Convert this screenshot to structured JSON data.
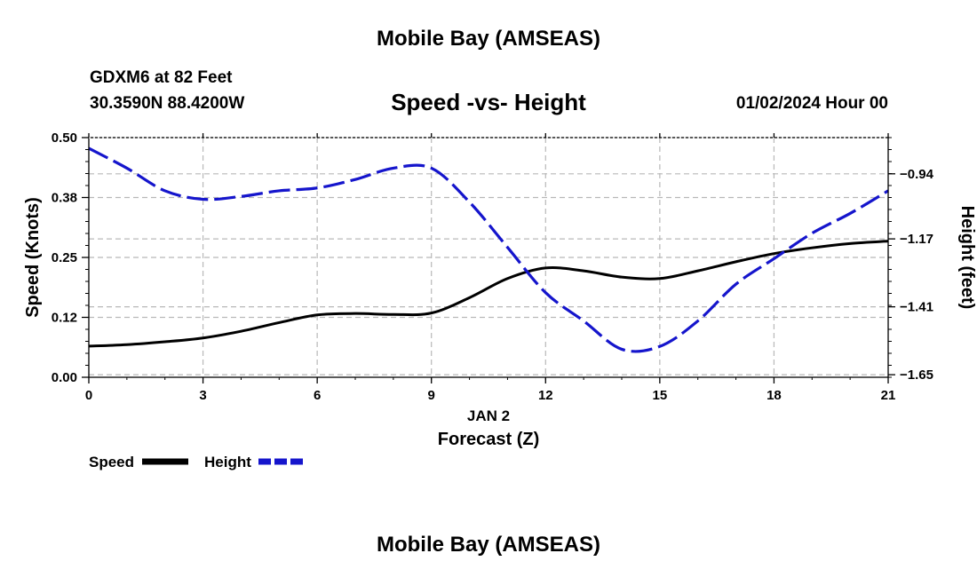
{
  "header": {
    "title": "Mobile Bay (AMSEAS)",
    "station": "GDXM6 at 82 Feet",
    "coordinates": "30.3590N  88.4200W",
    "chart_title": "Speed -vs- Height",
    "datetime": "01/02/2024 Hour 00"
  },
  "footer": {
    "title": "Mobile Bay (AMSEAS)"
  },
  "colors": {
    "speed": "#000000",
    "height": "#1515cc",
    "grid": "#b8b8b8"
  },
  "chart_data": {
    "type": "line",
    "title": "Speed -vs- Height",
    "xlabel": "Forecast (Z)",
    "xlabel_date": "JAN 2",
    "xlim": [
      0,
      21
    ],
    "x_ticks": [
      0,
      3,
      6,
      9,
      12,
      15,
      18,
      21
    ],
    "left_axis": {
      "label": "Speed (Knots)",
      "lim": [
        0.0,
        0.5
      ],
      "ticks": [
        0.0,
        0.125,
        0.25,
        0.375,
        0.5
      ],
      "tick_labels": [
        "0.00",
        "0.12",
        "0.25",
        "0.38",
        "0.50"
      ]
    },
    "right_axis": {
      "label": "Height (feet)",
      "lim": [
        -1.659,
        -0.812
      ],
      "ticks": [
        -1.65,
        -1.41,
        -1.17,
        -0.94
      ],
      "tick_labels": [
        "−1.65",
        "−1.41",
        "−1.17",
        "−0.94"
      ]
    },
    "grid": true,
    "legend": {
      "placement": "bottom-left"
    },
    "series": [
      {
        "name": "Speed",
        "axis": "left",
        "style": "solid",
        "x": [
          0,
          1,
          2,
          3,
          4,
          5,
          6,
          7,
          8,
          9,
          10,
          11,
          12,
          13,
          14,
          15,
          16,
          17,
          18,
          19,
          20,
          21
        ],
        "values": [
          0.065,
          0.068,
          0.074,
          0.082,
          0.096,
          0.114,
          0.13,
          0.133,
          0.131,
          0.134,
          0.166,
          0.206,
          0.228,
          0.222,
          0.209,
          0.206,
          0.222,
          0.241,
          0.258,
          0.27,
          0.279,
          0.284
        ]
      },
      {
        "name": "Height",
        "axis": "right",
        "style": "dashed",
        "x": [
          0,
          1,
          2,
          3,
          4,
          5,
          6,
          7,
          8,
          9,
          10,
          11,
          12,
          13,
          14,
          15,
          16,
          17,
          18,
          19,
          20,
          21
        ],
        "values": [
          -0.85,
          -0.92,
          -1.0,
          -1.03,
          -1.02,
          -1.0,
          -0.99,
          -0.96,
          -0.92,
          -0.92,
          -1.04,
          -1.2,
          -1.36,
          -1.46,
          -1.56,
          -1.55,
          -1.46,
          -1.33,
          -1.24,
          -1.15,
          -1.08,
          -1.0
        ]
      }
    ]
  }
}
